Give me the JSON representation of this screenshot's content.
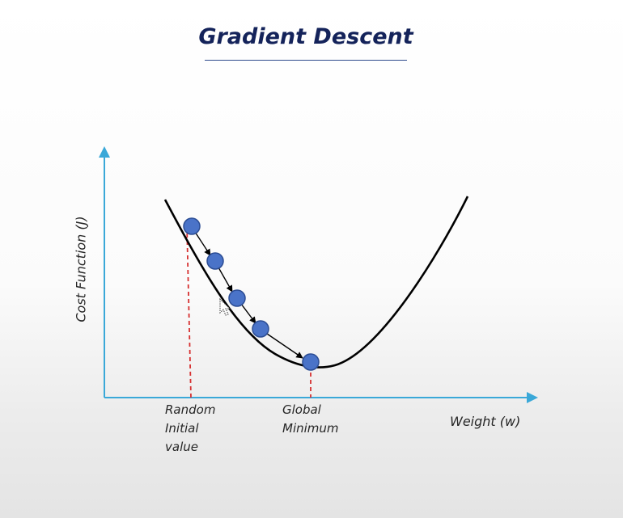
{
  "title": "Gradient Descent",
  "y_axis_label": "Cost Function (J)",
  "x_axis_label": "Weight (w)",
  "annotations": {
    "start_line1": "Random",
    "start_line2": "Initial",
    "start_line3": "value",
    "minimum_line1": "Global",
    "minimum_line2": "Minimum"
  },
  "colors": {
    "title": "#14235a",
    "axis": "#3aa8d8",
    "curve": "#000000",
    "point_fill": "#4a73c8",
    "point_stroke": "#2c4d94",
    "dashed_line": "#d63030"
  }
}
